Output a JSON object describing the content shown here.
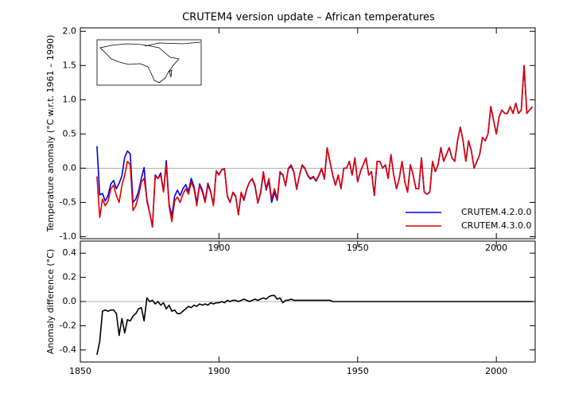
{
  "chart_data": [
    {
      "type": "line",
      "title": "CRUTEM4 version update – African temperatures",
      "ylabel": "Temperature anomaly (°C w.r.t. 1961 – 1990)",
      "xlim": [
        1850,
        2014
      ],
      "ylim": [
        -1.03,
        2.05
      ],
      "xticks": [
        1900,
        1950,
        2000
      ],
      "yticks": [
        {
          "value": -1.0,
          "label": "-1.0"
        },
        -0.5,
        {
          "value": 0.0,
          "label": "0.0"
        },
        0.5,
        {
          "value": 1.0,
          "label": "1.0"
        },
        1.5,
        {
          "value": 2.0,
          "label": "2.0"
        }
      ],
      "legend": "lower right",
      "x": [
        1856,
        1857,
        1858,
        1859,
        1860,
        1861,
        1862,
        1863,
        1864,
        1865,
        1866,
        1867,
        1868,
        1869,
        1870,
        1871,
        1872,
        1873,
        1874,
        1875,
        1876,
        1877,
        1878,
        1879,
        1880,
        1881,
        1882,
        1883,
        1884,
        1885,
        1886,
        1887,
        1888,
        1889,
        1890,
        1891,
        1892,
        1893,
        1894,
        1895,
        1896,
        1897,
        1898,
        1899,
        1900,
        1901,
        1902,
        1903,
        1904,
        1905,
        1906,
        1907,
        1908,
        1909,
        1910,
        1911,
        1912,
        1913,
        1914,
        1915,
        1916,
        1917,
        1918,
        1919,
        1920,
        1921,
        1922,
        1923,
        1924,
        1925,
        1926,
        1927,
        1928,
        1929,
        1930,
        1931,
        1932,
        1933,
        1934,
        1935,
        1936,
        1937,
        1938,
        1939,
        1940,
        1941,
        1942,
        1943,
        1944,
        1945,
        1946,
        1947,
        1948,
        1949,
        1950,
        1951,
        1952,
        1953,
        1954,
        1955,
        1956,
        1957,
        1958,
        1959,
        1960,
        1961,
        1962,
        1963,
        1964,
        1965,
        1966,
        1967,
        1968,
        1969,
        1970,
        1971,
        1972,
        1973,
        1974,
        1975,
        1976,
        1977,
        1978,
        1979,
        1980,
        1981,
        1982,
        1983,
        1984,
        1985,
        1986,
        1987,
        1988,
        1989,
        1990,
        1991,
        1992,
        1993,
        1994,
        1995,
        1996,
        1997,
        1998,
        1999,
        2000,
        2001,
        2002,
        2003,
        2004,
        2005,
        2006,
        2007,
        2008,
        2009,
        2010,
        2011,
        2012,
        2013
      ],
      "series": [
        {
          "name": "CRUTEM.4.2.0.0",
          "color": "#0000e0",
          "values": [
            0.32,
            -0.39,
            -0.37,
            -0.48,
            -0.4,
            -0.23,
            -0.18,
            -0.3,
            -0.22,
            -0.11,
            0.16,
            0.25,
            0.21,
            -0.5,
            -0.45,
            -0.34,
            -0.15,
            0.01,
            -0.48,
            -0.65,
            -0.86,
            -0.1,
            -0.15,
            -0.07,
            -0.34,
            0.11,
            -0.52,
            -0.7,
            -0.41,
            -0.32,
            -0.4,
            -0.3,
            -0.24,
            -0.34,
            -0.15,
            -0.27,
            -0.51,
            -0.23,
            -0.32,
            -0.48,
            -0.22,
            -0.34,
            -0.53,
            -0.04,
            -0.09,
            -0.02,
            -0.01,
            -0.41,
            -0.5,
            -0.36,
            -0.41,
            -0.68,
            -0.36,
            -0.47,
            -0.31,
            -0.2,
            -0.16,
            -0.27,
            -0.51,
            -0.37,
            -0.08,
            -0.32,
            -0.19,
            -0.5,
            -0.35,
            -0.47,
            -0.08,
            -0.09,
            -0.26,
            -0.01,
            0.03,
            -0.06,
            -0.31,
            -0.11,
            0.04,
            -0.01,
            -0.11,
            -0.16,
            -0.13,
            -0.19,
            -0.11,
            -0.01,
            -0.16,
            0.29,
            0.09,
            -0.1,
            -0.25,
            -0.1,
            -0.3,
            0.0,
            0.0,
            0.1,
            -0.1,
            0.15,
            -0.2,
            -0.05,
            0.05,
            0.15,
            -0.1,
            -0.05,
            -0.4,
            0.1,
            0.1,
            0.0,
            0.05,
            -0.15,
            0.2,
            -0.1,
            -0.3,
            -0.15,
            0.1,
            -0.2,
            -0.35,
            0.05,
            -0.1,
            -0.3,
            -0.3,
            0.15,
            -0.35,
            -0.38,
            -0.35,
            0.1,
            -0.05,
            0.05,
            0.3,
            0.1,
            0.2,
            0.3,
            0.15,
            0.1,
            0.4,
            0.6,
            0.4,
            0.1,
            0.4,
            0.25,
            0.0,
            0.1,
            0.2,
            0.45,
            0.4,
            0.5,
            0.9,
            0.7,
            0.5,
            0.75,
            0.85,
            0.8,
            0.8,
            0.9,
            0.8,
            0.95,
            0.8,
            0.85,
            1.5,
            0.8,
            0.85,
            0.9
          ]
        },
        {
          "name": "CRUTEM.4.3.0.0",
          "color": "#e00000",
          "values": [
            -0.12,
            -0.72,
            -0.45,
            -0.55,
            -0.48,
            -0.3,
            -0.25,
            -0.4,
            -0.5,
            -0.25,
            -0.1,
            0.1,
            0.05,
            -0.62,
            -0.55,
            -0.4,
            -0.2,
            -0.15,
            -0.45,
            -0.65,
            -0.85,
            -0.12,
            -0.15,
            -0.1,
            -0.35,
            0.05,
            -0.55,
            -0.78,
            -0.48,
            -0.42,
            -0.5,
            -0.38,
            -0.3,
            -0.38,
            -0.2,
            -0.3,
            -0.55,
            -0.25,
            -0.35,
            -0.5,
            -0.25,
            -0.35,
            -0.55,
            -0.05,
            -0.1,
            -0.02,
            -0.02,
            -0.4,
            -0.5,
            -0.35,
            -0.4,
            -0.68,
            -0.35,
            -0.45,
            -0.3,
            -0.2,
            -0.15,
            -0.25,
            -0.5,
            -0.35,
            -0.05,
            -0.3,
            -0.15,
            -0.45,
            -0.3,
            -0.45,
            -0.05,
            -0.1,
            -0.25,
            0.0,
            0.05,
            -0.05,
            -0.3,
            -0.1,
            0.05,
            0.0,
            -0.1,
            -0.15,
            -0.12,
            -0.18,
            -0.1,
            0.0,
            -0.15,
            0.3,
            0.1,
            -0.1,
            -0.25,
            -0.1,
            -0.3,
            0.0,
            0.0,
            0.1,
            -0.1,
            0.15,
            -0.2,
            -0.05,
            0.05,
            0.15,
            -0.1,
            -0.05,
            -0.4,
            0.1,
            0.1,
            0.0,
            0.05,
            -0.15,
            0.2,
            -0.1,
            -0.3,
            -0.15,
            0.1,
            -0.2,
            -0.35,
            0.05,
            -0.1,
            -0.3,
            -0.3,
            0.15,
            -0.35,
            -0.38,
            -0.35,
            0.1,
            -0.05,
            0.05,
            0.3,
            0.1,
            0.2,
            0.3,
            0.15,
            0.1,
            0.4,
            0.6,
            0.4,
            0.1,
            0.4,
            0.25,
            0.0,
            0.1,
            0.2,
            0.45,
            0.4,
            0.5,
            0.9,
            0.7,
            0.5,
            0.75,
            0.85,
            0.8,
            0.8,
            0.9,
            0.8,
            0.95,
            0.8,
            0.85,
            1.5,
            0.8,
            0.85,
            0.9
          ]
        }
      ]
    },
    {
      "type": "line",
      "ylabel": "Anomaly difference (°C)",
      "xlim": [
        1850,
        2014
      ],
      "ylim": [
        -0.5,
        0.5
      ],
      "xticks": [
        1850,
        1900,
        1950,
        2000
      ],
      "yticks": [
        -0.4,
        -0.2,
        {
          "value": 0.0,
          "label": "0.0"
        },
        0.2,
        0.4
      ],
      "x": [
        1856,
        1857,
        1858,
        1859,
        1860,
        1861,
        1862,
        1863,
        1864,
        1865,
        1866,
        1867,
        1868,
        1869,
        1870,
        1871,
        1872,
        1873,
        1874,
        1875,
        1876,
        1877,
        1878,
        1879,
        1880,
        1881,
        1882,
        1883,
        1884,
        1885,
        1886,
        1887,
        1888,
        1889,
        1890,
        1891,
        1892,
        1893,
        1894,
        1895,
        1896,
        1897,
        1898,
        1899,
        1900,
        1901,
        1902,
        1903,
        1904,
        1905,
        1906,
        1907,
        1908,
        1909,
        1910,
        1911,
        1912,
        1913,
        1914,
        1915,
        1916,
        1917,
        1918,
        1919,
        1920,
        1921,
        1922,
        1923,
        1924,
        1925,
        1926,
        1927,
        1928,
        1929,
        1930,
        1931,
        1932,
        1933,
        1934,
        1935,
        1936,
        1937,
        1938,
        1939,
        1940,
        1941,
        1942,
        1943,
        1944,
        1945,
        1946,
        1947,
        1948,
        1949,
        1950,
        1951,
        1952,
        1953,
        1954,
        1955,
        1956,
        1957,
        1958,
        1959,
        1960,
        1961,
        1962,
        1963,
        1964,
        1965,
        1966,
        1967,
        1968,
        1969,
        1970,
        1971,
        1972,
        1973,
        1974,
        1975,
        1976,
        1977,
        1978,
        1979,
        1980,
        1981,
        1982,
        1983,
        1984,
        1985,
        1986,
        1987,
        1988,
        1989,
        1990,
        1991,
        1992,
        1993,
        1994,
        1995,
        1996,
        1997,
        1998,
        1999,
        2000,
        2001,
        2002,
        2003,
        2004,
        2005,
        2006,
        2007,
        2008,
        2009,
        2010,
        2011,
        2012,
        2013
      ],
      "series": [
        {
          "color": "#000000",
          "values": [
            -0.44,
            -0.33,
            -0.08,
            -0.07,
            -0.08,
            -0.07,
            -0.07,
            -0.1,
            -0.28,
            -0.14,
            -0.26,
            -0.15,
            -0.16,
            -0.12,
            -0.1,
            -0.06,
            -0.05,
            -0.16,
            0.03,
            0.0,
            0.01,
            -0.02,
            0.0,
            -0.03,
            -0.01,
            -0.06,
            -0.03,
            -0.08,
            -0.07,
            -0.1,
            -0.1,
            -0.08,
            -0.06,
            -0.04,
            -0.05,
            -0.03,
            -0.04,
            -0.02,
            -0.03,
            -0.02,
            -0.03,
            -0.01,
            -0.02,
            -0.01,
            -0.01,
            0.0,
            -0.01,
            0.01,
            0.0,
            0.01,
            0.01,
            0.0,
            0.01,
            0.02,
            0.01,
            0.0,
            0.01,
            0.02,
            0.01,
            0.02,
            0.03,
            0.02,
            0.04,
            0.05,
            0.05,
            0.02,
            0.03,
            -0.01,
            0.01,
            0.01,
            0.02,
            0.01,
            0.01,
            0.01,
            0.01,
            0.01,
            0.01,
            0.01,
            0.01,
            0.01,
            0.01,
            0.01,
            0.01,
            0.01,
            0.01,
            0.0,
            0.0,
            0.0,
            0.0,
            0.0,
            0.0,
            0.0,
            0.0,
            0.0,
            0.0,
            0.0,
            0.0,
            0.0,
            0.0,
            0.0,
            0.0,
            0.0,
            0.0,
            0.0,
            0.0,
            0.0,
            0.0,
            0.0,
            0.0,
            0.0,
            0.0,
            0.0,
            0.0,
            0.0,
            0.0,
            0.0,
            0.0,
            0.0,
            0.0,
            0.0,
            0.0,
            0.0,
            0.0,
            0.0,
            0.0,
            0.0,
            0.0,
            0.0,
            0.0,
            0.0,
            0.0,
            0.0,
            0.0,
            0.0,
            0.0,
            0.0,
            0.0,
            0.0,
            0.0,
            0.0,
            0.0,
            0.0,
            0.0,
            0.0,
            0.0,
            0.0,
            0.0,
            0.0,
            0.0,
            0.0,
            0.0,
            0.0,
            0.0,
            0.0,
            0.0,
            0.0,
            0.0,
            0.0
          ]
        }
      ]
    }
  ]
}
